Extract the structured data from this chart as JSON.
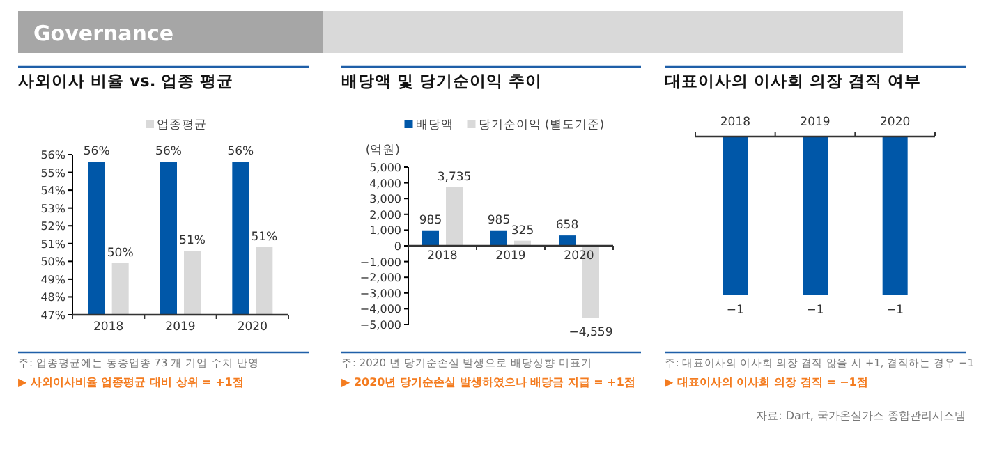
{
  "chart_data": [
    {
      "type": "bar",
      "title": "사외이사 비율 vs. 업종 평균",
      "categories": [
        "2018",
        "2019",
        "2020"
      ],
      "series": [
        {
          "color": "#0057a8",
          "values": [
            55.6,
            55.6,
            55.6
          ],
          "value_labels": [
            "56%",
            "56%",
            "56%"
          ]
        },
        {
          "name": "업종평균",
          "color": "#d9d9d9",
          "values": [
            49.9,
            50.6,
            50.8
          ],
          "value_labels": [
            "50%",
            "51%",
            "51%"
          ]
        }
      ],
      "ylim": [
        47,
        56
      ],
      "yticks": [
        {
          "value": 47,
          "label": "47%"
        },
        {
          "value": 48,
          "label": "48%"
        },
        {
          "value": 49,
          "label": "49%"
        },
        {
          "value": 50,
          "label": "50%"
        },
        {
          "value": 51,
          "label": "51%"
        },
        {
          "value": 52,
          "label": "52%"
        },
        {
          "value": 53,
          "label": "53%"
        },
        {
          "value": 54,
          "label": "54%"
        },
        {
          "value": 55,
          "label": "55%"
        },
        {
          "value": 56,
          "label": "56%"
        }
      ],
      "legend": "top",
      "grid": false,
      "annotations": [
        "주: 업종평균에는 동종업종 73 개 기업 수치 반영",
        "▶ 사외이사비율 업종평균 대비 상위 = +1점",
        "Governance"
      ]
    },
    {
      "type": "bar",
      "title": "배당액 및 당기순이익 추이",
      "ylabel": "(억원)",
      "categories": [
        "2018",
        "2019",
        "2020"
      ],
      "series": [
        {
          "name": "배당액",
          "color": "#0057a8",
          "values": [
            985,
            985,
            658
          ],
          "value_labels": [
            "985",
            "985",
            "658"
          ]
        },
        {
          "name": "당기순이익 (별도기준)",
          "color": "#d9d9d9",
          "values": [
            3735,
            325,
            -4559
          ],
          "value_labels": [
            "3,735",
            "325",
            "−4,559"
          ]
        }
      ],
      "ylim": [
        -5000,
        5000
      ],
      "yticks": [
        {
          "value": -5000,
          "label": "−5,000"
        },
        {
          "value": -4000,
          "label": "−4,000"
        },
        {
          "value": -3000,
          "label": "−3,000"
        },
        {
          "value": -2000,
          "label": "−2,000"
        },
        {
          "value": -1000,
          "label": "−1,000"
        },
        0,
        {
          "value": 1000,
          "label": "1,000"
        },
        {
          "value": 2000,
          "label": "2,000"
        },
        {
          "value": 3000,
          "label": "3,000"
        },
        {
          "value": 4000,
          "label": "4,000"
        },
        {
          "value": 5000,
          "label": "5,000"
        }
      ],
      "legend": "top",
      "grid": false,
      "annotations": [
        "주: 2020 년 당기순손실 발생으로 배당성향 미표기",
        "▶ 2020년 당기순손실 발생하였으나 배당금 지급 = +1점"
      ]
    },
    {
      "type": "bar",
      "title": "대표이사의 이사회 의장 겸직 여부",
      "categories": [
        "2018",
        "2019",
        "2020"
      ],
      "series": [
        {
          "color": "#0057a8",
          "values": [
            -1,
            -1,
            -1
          ],
          "value_labels": [
            "−1",
            "−1",
            "−1"
          ]
        }
      ],
      "tick_labels": "x",
      "grid": false,
      "annotations": [
        "주: 대표이사의 이사회 의장 겸직 않을 시 +1, 겸직하는 경우 −1",
        "▶ 대표이사의 이사회 의장 겸직 = −1점",
        "자료: Dart, 국가온실가스 종합관리시스템"
      ]
    }
  ]
}
